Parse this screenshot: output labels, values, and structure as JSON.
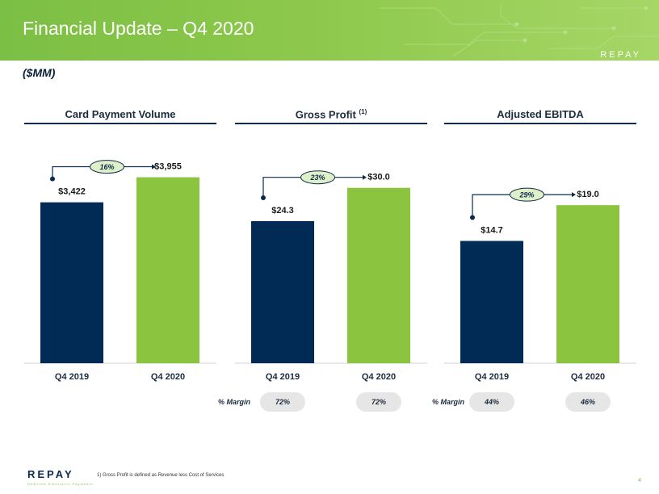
{
  "header": {
    "title": "Financial Update – Q4 2020",
    "brand": "REPAY",
    "units": "($MM)"
  },
  "colors": {
    "navy": "#012b55",
    "green": "#8bc53f",
    "banner": "#8cc84b"
  },
  "chart_data": [
    {
      "type": "bar",
      "title": "Card Payment Volume",
      "categories": [
        "Q4 2019",
        "Q4 2020"
      ],
      "values": [
        3422,
        3955
      ],
      "value_labels": [
        "$3,422",
        "$3,955"
      ],
      "growth_label": "16%",
      "ylim": [
        0,
        4600
      ]
    },
    {
      "type": "bar",
      "title": "Gross Profit",
      "title_superscript": "(1)",
      "categories": [
        "Q4 2019",
        "Q4 2020"
      ],
      "values": [
        24.3,
        30.0
      ],
      "value_labels": [
        "$24.3",
        "$30.0"
      ],
      "growth_label": "23%",
      "ylim": [
        0,
        37
      ],
      "margin_label": "% Margin",
      "margins": [
        "72%",
        "72%"
      ]
    },
    {
      "type": "bar",
      "title": "Adjusted EBITDA",
      "categories": [
        "Q4 2019",
        "Q4 2020"
      ],
      "values": [
        14.7,
        19.0
      ],
      "value_labels": [
        "$14.7",
        "$19.0"
      ],
      "growth_label": "29%",
      "ylim": [
        0,
        26
      ],
      "margin_label": "% Margin",
      "margins": [
        "44%",
        "46%"
      ]
    }
  ],
  "footer": {
    "logo": "REPAY",
    "tagline": "Realtime Electronic Payments",
    "footnote": "1)     Gross Profit is defined as Revenue less Cost of Services",
    "page_number": "4"
  }
}
